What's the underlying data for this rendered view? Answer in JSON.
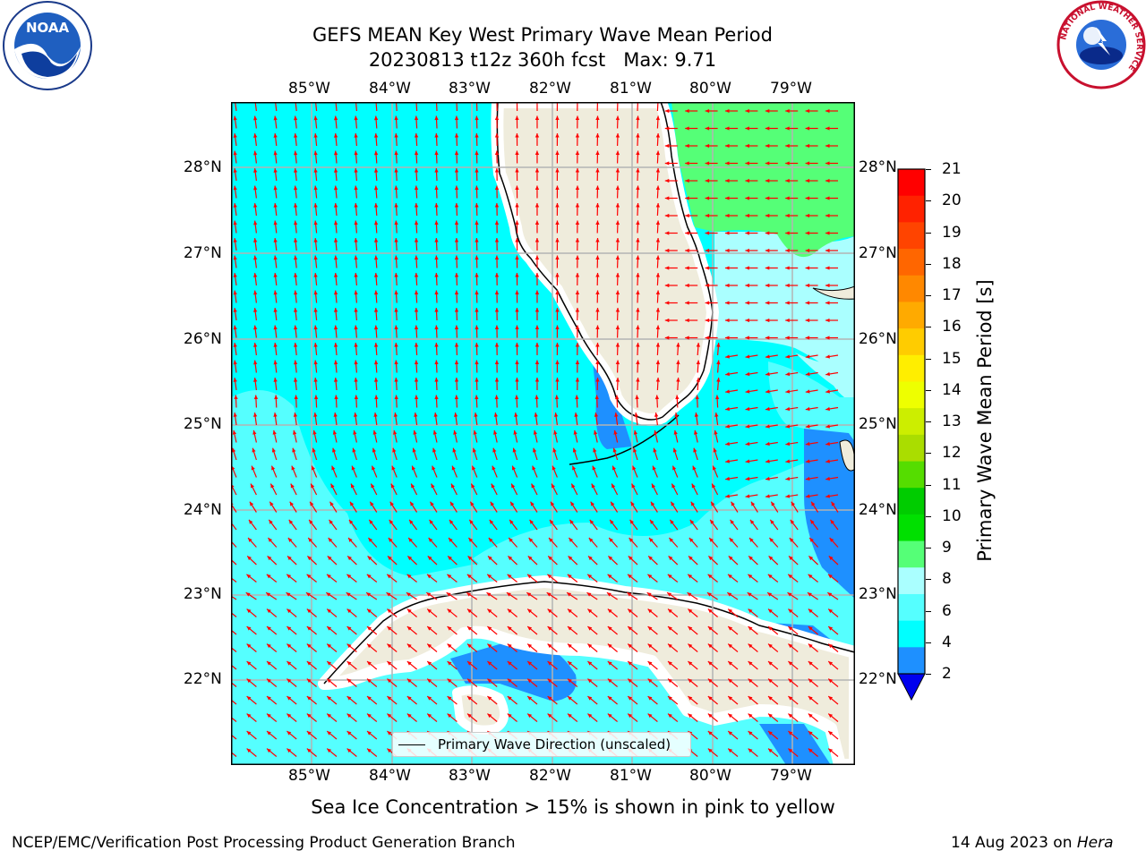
{
  "header": {
    "title_line1": "GEFS MEAN Key West Primary Wave Mean Period",
    "title_line2": "20230813 t12z 360h fcst   Max: 9.71"
  },
  "logos": {
    "noaa_label": "NOAA",
    "nws_label": "NATIONAL WEATHER SERVICE"
  },
  "map": {
    "lon_labels": [
      "85°W",
      "84°W",
      "83°W",
      "82°W",
      "81°W",
      "80°W",
      "79°W"
    ],
    "lat_labels": [
      "28°N",
      "27°N",
      "26°N",
      "25°N",
      "24°N",
      "23°N",
      "22°N"
    ],
    "legend_label": "Primary Wave Direction (unscaled)",
    "colors": {
      "ocean_cyan": "#00ffff",
      "light_cyan": "#55ffff",
      "pale_cyan": "#aaffff",
      "blue": "#1e90ff",
      "green_9": "#55ff77",
      "land": "#efecdc",
      "arrows": "#ff0000"
    }
  },
  "colorbar": {
    "label": "Primary Wave Mean Period [s]",
    "ticks": [
      "2",
      "4",
      "6",
      "8",
      "9",
      "10",
      "11",
      "12",
      "13",
      "14",
      "15",
      "16",
      "17",
      "18",
      "19",
      "20",
      "21"
    ],
    "colors": [
      "#0000ee",
      "#1e90ff",
      "#00ffff",
      "#55ffff",
      "#aaffff",
      "#55ff77",
      "#00e000",
      "#00cc00",
      "#55dd00",
      "#aadd00",
      "#ccee00",
      "#eeff00",
      "#ffee00",
      "#ffcc00",
      "#ffaa00",
      "#ff8800",
      "#ff6600",
      "#ff4400",
      "#ff2200",
      "#ff0000"
    ]
  },
  "notes": {
    "sea_ice": "Sea Ice Concentration > 15% is shown in pink to yellow"
  },
  "footer": {
    "branch": "NCEP/EMC/Verification Post Processing Product Generation Branch",
    "date_prefix": "14 Aug 2023 on ",
    "machine": "Hera"
  }
}
